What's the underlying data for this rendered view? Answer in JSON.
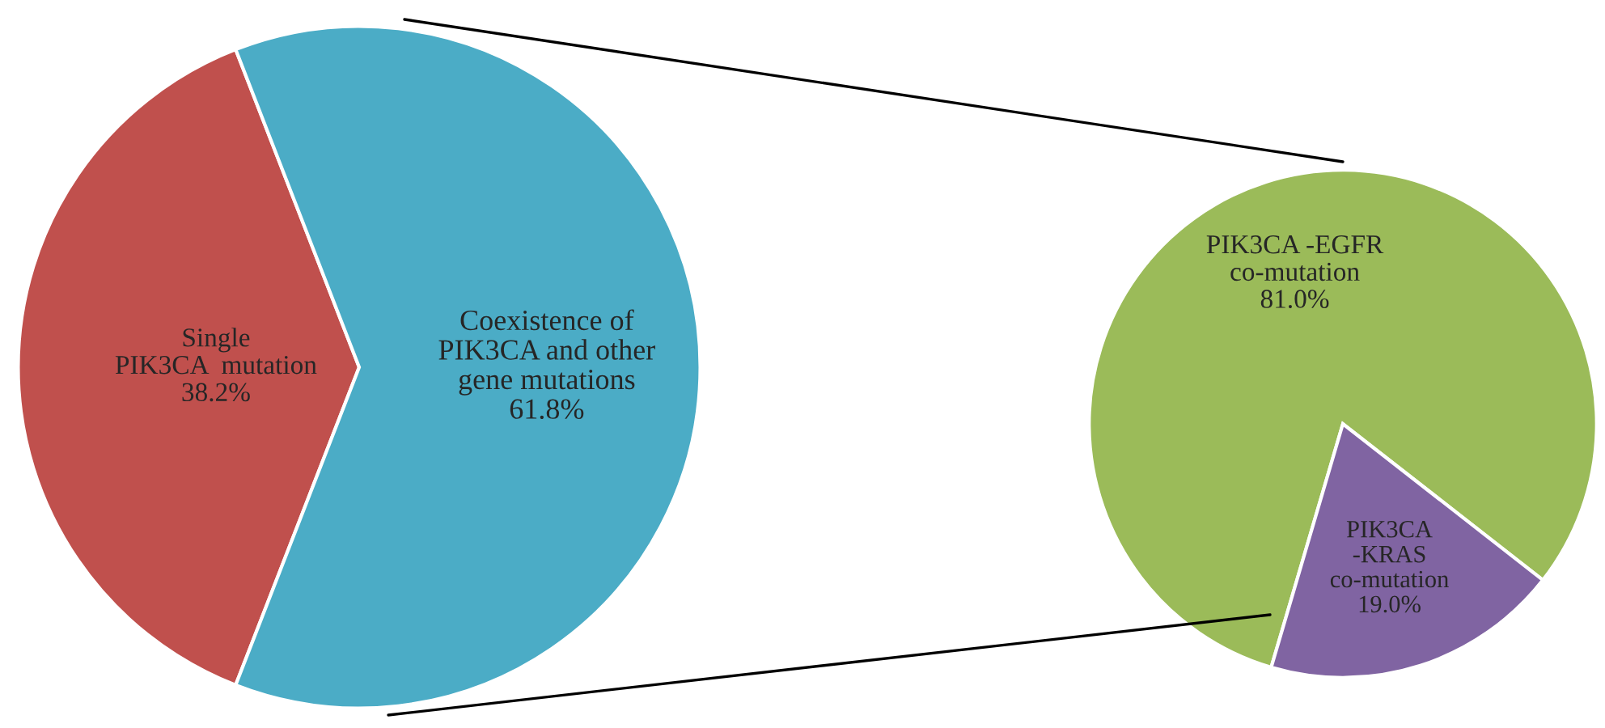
{
  "chart_data": [
    {
      "type": "pie",
      "categories": [
        "Single\nPIK3CA  mutation",
        "Coexistence of\nPIK3CA and other\ngene mutations"
      ],
      "values": [
        38.2,
        61.8
      ],
      "colors": [
        "#c0504d",
        "#4bacc6"
      ],
      "value_labels": [
        "38.2%",
        "61.8%"
      ]
    },
    {
      "type": "pie",
      "categories": [
        "PIK3CA -EGFR\nco-mutation",
        "PIK3CA\n-KRAS\nco-mutation"
      ],
      "values": [
        81.0,
        19.0
      ],
      "colors": [
        "#9bbb59",
        "#8064a2"
      ],
      "value_labels": [
        "81.0%",
        "19.0%"
      ]
    }
  ]
}
